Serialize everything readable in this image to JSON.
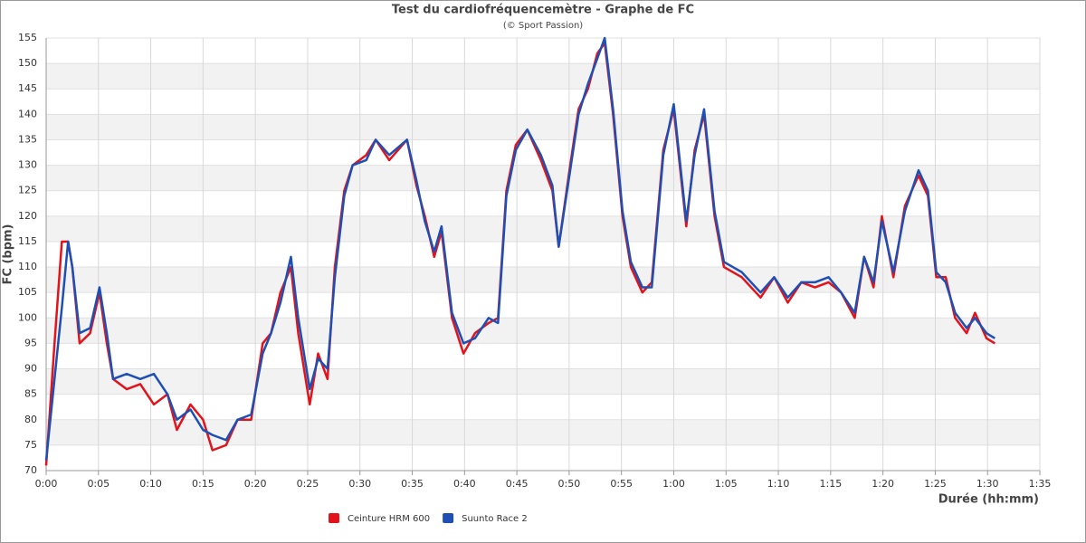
{
  "chart_data": {
    "type": "line",
    "title": "Test du cardiofréquencemètre - Graphe de FC",
    "subtitle": "(© Sport Passion)",
    "x_label": "Durée (hh:mm)",
    "y_label": "FC (bpm)",
    "x": [
      0,
      0.8,
      1.5,
      2.1,
      2.5,
      3.2,
      4.2,
      5.1,
      5.8,
      6.4,
      7.7,
      9,
      10.3,
      11.6,
      12.5,
      13.8,
      15,
      15.9,
      17.2,
      18.3,
      19.6,
      20.7,
      21.5,
      22.4,
      23.4,
      24.1,
      25.2,
      26,
      26.9,
      27.6,
      28.5,
      29.3,
      30.6,
      31.5,
      32.8,
      34.5,
      35.4,
      36.2,
      37.1,
      37.8,
      38.8,
      39.9,
      41,
      42.3,
      43.2,
      44,
      44.9,
      46,
      47.3,
      48.4,
      49,
      50.1,
      50.9,
      51.8,
      52.7,
      53.4,
      54.2,
      55.1,
      55.9,
      57,
      57.9,
      59,
      60,
      61.2,
      62,
      62.9,
      63.9,
      64.8,
      66.5,
      68.3,
      69.6,
      70.9,
      72.2,
      73.5,
      74.8,
      76,
      77.3,
      78.2,
      79.1,
      79.9,
      81,
      82.1,
      83.4,
      84.3,
      85.1,
      86,
      86.9,
      88,
      88.8,
      89.9,
      90.7
    ],
    "series": [
      {
        "name": "Ceinture HRM 600",
        "color": "#e3131b",
        "values": [
          71,
          95,
          115,
          115,
          110,
          95,
          97,
          105,
          95,
          88,
          86,
          87,
          83,
          85,
          78,
          83,
          80,
          74,
          75,
          80,
          80,
          95,
          97,
          105,
          110,
          97,
          83,
          93,
          88,
          110,
          125,
          130,
          132,
          135,
          131,
          135,
          126,
          120,
          112,
          117,
          100,
          93,
          97,
          99,
          100,
          125,
          134,
          137,
          131,
          125,
          114,
          130,
          141,
          145,
          152,
          154,
          140,
          120,
          110,
          105,
          107,
          133,
          141,
          118,
          133,
          140,
          120,
          110,
          108,
          104,
          108,
          103,
          107,
          106,
          107,
          105,
          100,
          112,
          106,
          120,
          108,
          122,
          128,
          124,
          108,
          108,
          100,
          97,
          101,
          96,
          95
        ]
      },
      {
        "name": "Suunto Race 2",
        "color": "#1d4fb5",
        "values": [
          72,
          88,
          102,
          115,
          110,
          97,
          98,
          106,
          97,
          88,
          89,
          88,
          89,
          85,
          80,
          82,
          78,
          77,
          76,
          80,
          81,
          93,
          97,
          103,
          112,
          100,
          86,
          92,
          90,
          108,
          124,
          130,
          131,
          135,
          132,
          135,
          127,
          119,
          113,
          118,
          101,
          95,
          96,
          100,
          99,
          124,
          133,
          137,
          132,
          126,
          114,
          129,
          140,
          146,
          151,
          155,
          141,
          121,
          111,
          106,
          106,
          132,
          142,
          119,
          132,
          141,
          121,
          111,
          109,
          105,
          108,
          104,
          107,
          107,
          108,
          105,
          101,
          112,
          107,
          119,
          109,
          121,
          129,
          125,
          109,
          107,
          101,
          98,
          100,
          97,
          96
        ]
      }
    ],
    "xlim": [
      0,
      95
    ],
    "xticks": [
      {
        "value": 0,
        "label": "0:00"
      },
      {
        "value": 5,
        "label": "0:05"
      },
      {
        "value": 10,
        "label": "0:10"
      },
      {
        "value": 15,
        "label": "0:15"
      },
      {
        "value": 20,
        "label": "0:20"
      },
      {
        "value": 25,
        "label": "0:25"
      },
      {
        "value": 30,
        "label": "0:30"
      },
      {
        "value": 35,
        "label": "0:35"
      },
      {
        "value": 40,
        "label": "0:40"
      },
      {
        "value": 45,
        "label": "0:45"
      },
      {
        "value": 50,
        "label": "0:50"
      },
      {
        "value": 55,
        "label": "0:55"
      },
      {
        "value": 60,
        "label": "1:00"
      },
      {
        "value": 65,
        "label": "1:05"
      },
      {
        "value": 70,
        "label": "1:10"
      },
      {
        "value": 75,
        "label": "1:15"
      },
      {
        "value": 80,
        "label": "1:20"
      },
      {
        "value": 85,
        "label": "1:25"
      },
      {
        "value": 90,
        "label": "1:30"
      },
      {
        "value": 95,
        "label": "1:35"
      }
    ],
    "ylim": [
      70,
      155
    ],
    "yticks": [
      70,
      75,
      80,
      85,
      90,
      95,
      100,
      105,
      110,
      115,
      120,
      125,
      130,
      135,
      140,
      145,
      150,
      155
    ],
    "grid": true,
    "legend": "bottom"
  }
}
